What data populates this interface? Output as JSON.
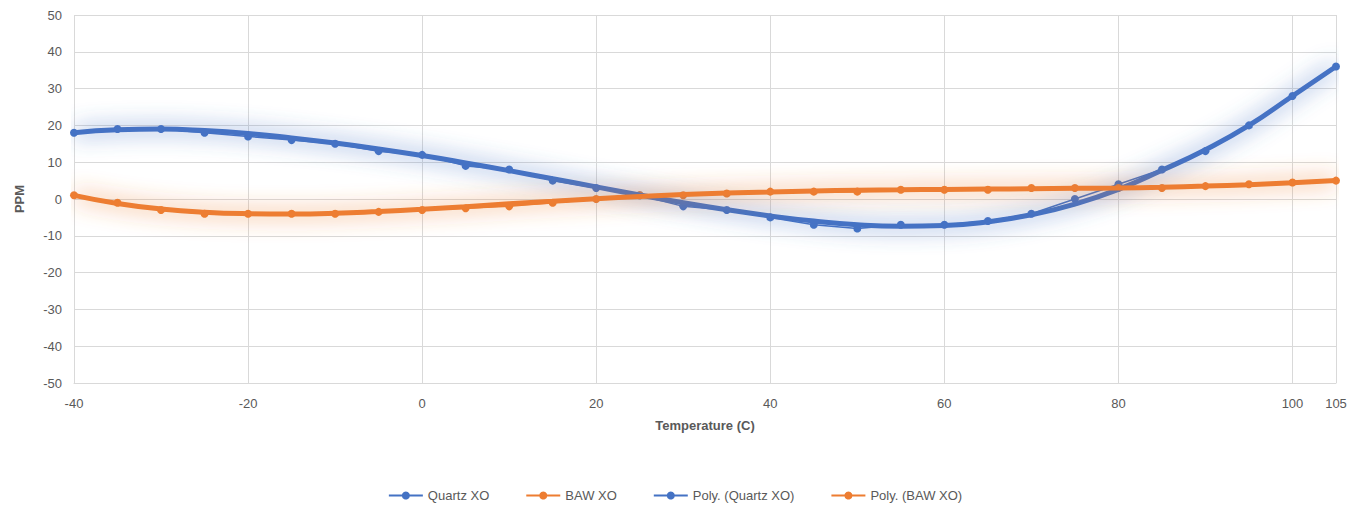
{
  "chart_data": {
    "type": "line",
    "x_label": "Temperature (C)",
    "y_label": "PPM",
    "x": [
      -40,
      -35,
      -30,
      -25,
      -20,
      -15,
      -10,
      -5,
      0,
      5,
      10,
      15,
      20,
      25,
      30,
      35,
      40,
      45,
      50,
      55,
      60,
      65,
      70,
      75,
      80,
      85,
      90,
      95,
      100,
      105
    ],
    "xlim": [
      -40,
      105
    ],
    "xticks": [
      -40,
      -20,
      0,
      20,
      40,
      60,
      80,
      100
    ],
    "ylim": [
      -50,
      50
    ],
    "yticks": [
      -50,
      -40,
      -30,
      -20,
      -10,
      0,
      10,
      20,
      30,
      40,
      50
    ],
    "grid": true,
    "legend": "bottom",
    "series": [
      {
        "name": "Quartz XO",
        "color": "#4472c4",
        "marker": "circle",
        "line_style": "solid",
        "values": [
          18,
          19,
          19,
          18,
          17,
          16,
          15,
          13,
          12,
          9,
          8,
          5,
          3,
          1,
          -2,
          -3,
          -5,
          -7,
          -8,
          -7,
          -7,
          -6,
          -4,
          0,
          4,
          8,
          13,
          20,
          28,
          36
        ]
      },
      {
        "name": "BAW XO",
        "color": "#ed7d31",
        "marker": "circle",
        "line_style": "solid",
        "values": [
          1,
          -1,
          -3,
          -4,
          -4,
          -4,
          -4,
          -3.5,
          -3,
          -2.5,
          -2,
          -1,
          0,
          1,
          1,
          1.5,
          2,
          2,
          2,
          2.5,
          2.5,
          2.5,
          3,
          3,
          3,
          3,
          3.5,
          4,
          4.5,
          5
        ]
      },
      {
        "name": "Poly. (Quartz XO)",
        "color": "#4472c4",
        "marker": "none",
        "line_style": "solid",
        "values": [
          18,
          18.8,
          19,
          18.6,
          17.8,
          16.6,
          15.2,
          13.6,
          11.8,
          9.8,
          7.7,
          5.5,
          3.3,
          1.1,
          -1,
          -2.9,
          -4.6,
          -6,
          -7,
          -7.4,
          -7.2,
          -6.2,
          -4.3,
          -1.4,
          2.6,
          7.8,
          13.4,
          20,
          28,
          36
        ]
      },
      {
        "name": "Poly. (BAW XO)",
        "color": "#ed7d31",
        "marker": "none",
        "line_style": "solid",
        "values": [
          1,
          -1.2,
          -2.7,
          -3.6,
          -4,
          -4.1,
          -3.9,
          -3.4,
          -2.8,
          -2.1,
          -1.3,
          -0.6,
          0.1,
          0.7,
          1.2,
          1.6,
          1.9,
          2.2,
          2.4,
          2.5,
          2.6,
          2.7,
          2.8,
          2.9,
          3,
          3.2,
          3.5,
          3.9,
          4.4,
          5
        ]
      }
    ]
  }
}
